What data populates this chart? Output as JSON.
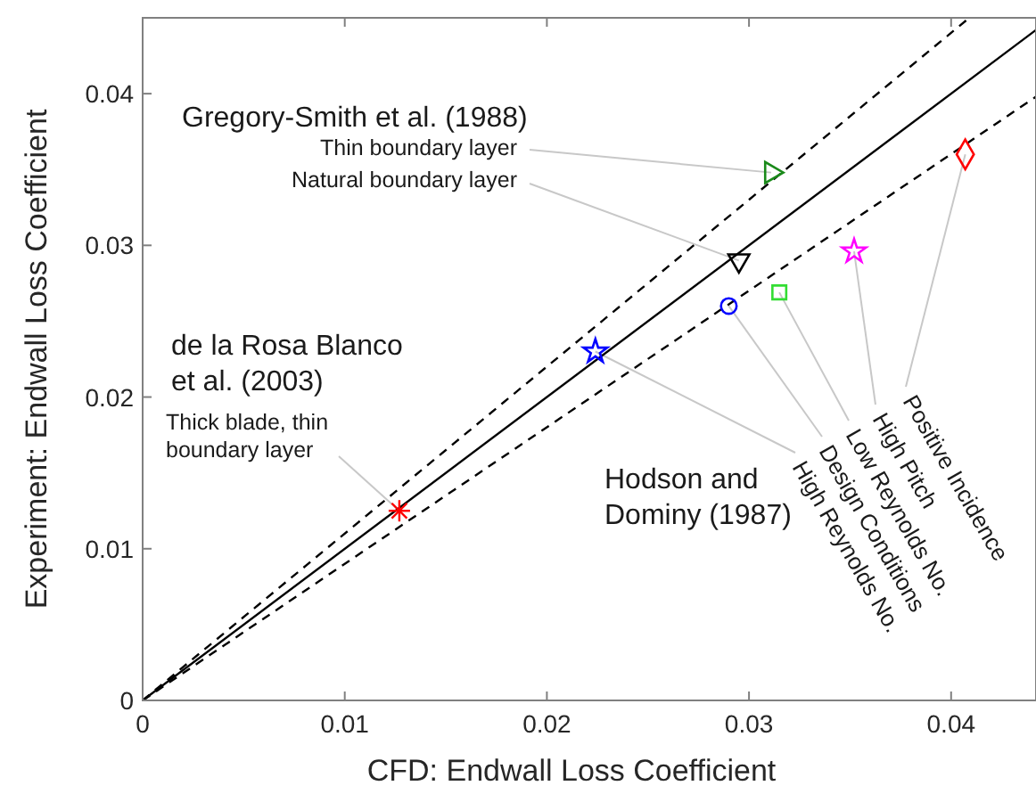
{
  "chart_data": {
    "type": "scatter",
    "xlabel": "CFD: Endwall Loss Coefficient",
    "ylabel": "Experiment: Endwall Loss Coefficient",
    "xlim": [
      0,
      0.0442
    ],
    "ylim": [
      0,
      0.045
    ],
    "xticks": [
      0,
      0.01,
      0.02,
      0.03,
      0.04
    ],
    "yticks": [
      0,
      0.01,
      0.02,
      0.03,
      0.04
    ],
    "grid": false,
    "series": [
      {
        "type": "line",
        "color": "#000000",
        "line_style": "solid",
        "x": [
          0,
          0.0442
        ],
        "values": [
          0,
          0.0442
        ]
      },
      {
        "type": "line",
        "color": "#000000",
        "line_style": "dashed",
        "x": [
          0,
          0.0409
        ],
        "values": [
          0,
          0.045
        ]
      },
      {
        "type": "line",
        "color": "#000000",
        "line_style": "dashed",
        "x": [
          0,
          0.0442
        ],
        "values": [
          0,
          0.0398
        ]
      },
      {
        "color": "#1a8a1a",
        "marker": "triangle",
        "x": [
          0.0311
        ],
        "values": [
          0.0348
        ]
      },
      {
        "color": "#000000",
        "marker": "triangle",
        "x": [
          0.0295
        ],
        "values": [
          0.029
        ]
      },
      {
        "color": "#ff0000",
        "marker": "diamond",
        "x": [
          0.0407
        ],
        "values": [
          0.036
        ]
      },
      {
        "color": "#ff00ff",
        "marker": "star",
        "x": [
          0.0352
        ],
        "values": [
          0.0296
        ]
      },
      {
        "color": "#33dd33",
        "marker": "square",
        "x": [
          0.0315
        ],
        "values": [
          0.0269
        ]
      },
      {
        "color": "#0000ff",
        "marker": "circle",
        "x": [
          0.029
        ],
        "values": [
          0.026
        ]
      },
      {
        "color": "#0000ff",
        "marker": "star",
        "x": [
          0.0224
        ],
        "values": [
          0.023
        ]
      },
      {
        "color": "#ff0000",
        "marker": "cross",
        "x": [
          0.0127
        ],
        "values": [
          0.0125
        ]
      }
    ],
    "annotations": [
      "Gregory-Smith et al. (1988)",
      {
        "text": "Thin boundary layer",
        "x": 0.0311,
        "y": 0.0348
      },
      {
        "text": "Natural boundary layer",
        "x": 0.0295,
        "y": 0.029
      },
      "de la Rosa Blanco\net al. (2003)",
      {
        "text": "Thick blade, thin\nboundary layer",
        "x": 0.0127,
        "y": 0.0125
      },
      "Hodson and\nDominy (1987)",
      {
        "text": "High Reynolds No.",
        "x": 0.0224,
        "y": 0.023
      },
      {
        "text": "Design Conditions",
        "x": 0.029,
        "y": 0.026
      },
      {
        "text": "Low Reynolds No.",
        "x": 0.0315,
        "y": 0.0269
      },
      {
        "text": "High Pitch",
        "x": 0.0352,
        "y": 0.0296
      },
      {
        "text": "Positive Incidence",
        "x": 0.0407,
        "y": 0.036
      }
    ]
  }
}
